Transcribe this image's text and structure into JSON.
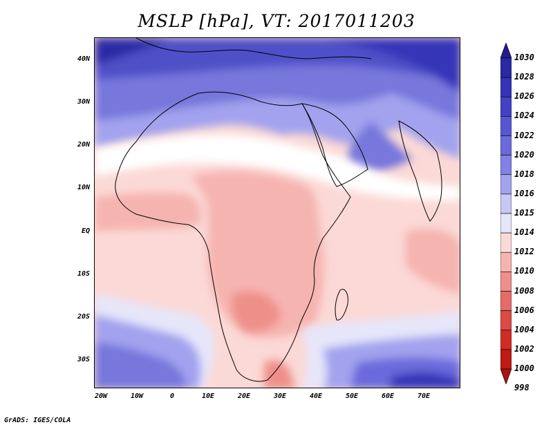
{
  "title": "MSLP [hPa], VT: 2017011203",
  "credit": "GrADS: IGES/COLA",
  "map": {
    "variable": "Mean sea level pressure",
    "units": "hPa",
    "region": "Africa, Middle East and western Indian Ocean",
    "lat_labels": [
      "40N",
      "30N",
      "20N",
      "10N",
      "EQ",
      "10S",
      "20S",
      "30S"
    ],
    "lon_labels": [
      "20W",
      "10W",
      "0",
      "10E",
      "20E",
      "30E",
      "40E",
      "50E",
      "60E",
      "70E"
    ]
  },
  "colorbar": {
    "levels": [
      "1030",
      "1028",
      "1026",
      "1024",
      "1022",
      "1020",
      "1018",
      "1016",
      "1015",
      "1014",
      "1012",
      "1010",
      "1008",
      "1006",
      "1004",
      "1002",
      "1000",
      "998"
    ],
    "colors": [
      "#1e1e8c",
      "#2a2aa6",
      "#3434b8",
      "#4242c6",
      "#5656d2",
      "#6a6adc",
      "#8282e4",
      "#a2a2ee",
      "#c8c8f6",
      "#e6e6fa",
      "#fbd9d6",
      "#f6b4b0",
      "#ee908a",
      "#e46c66",
      "#dc4a44",
      "#d02c26",
      "#c01a14",
      "#a81410"
    ]
  },
  "colors": {
    "land_outline": "#000000",
    "background": "#ffffff"
  }
}
